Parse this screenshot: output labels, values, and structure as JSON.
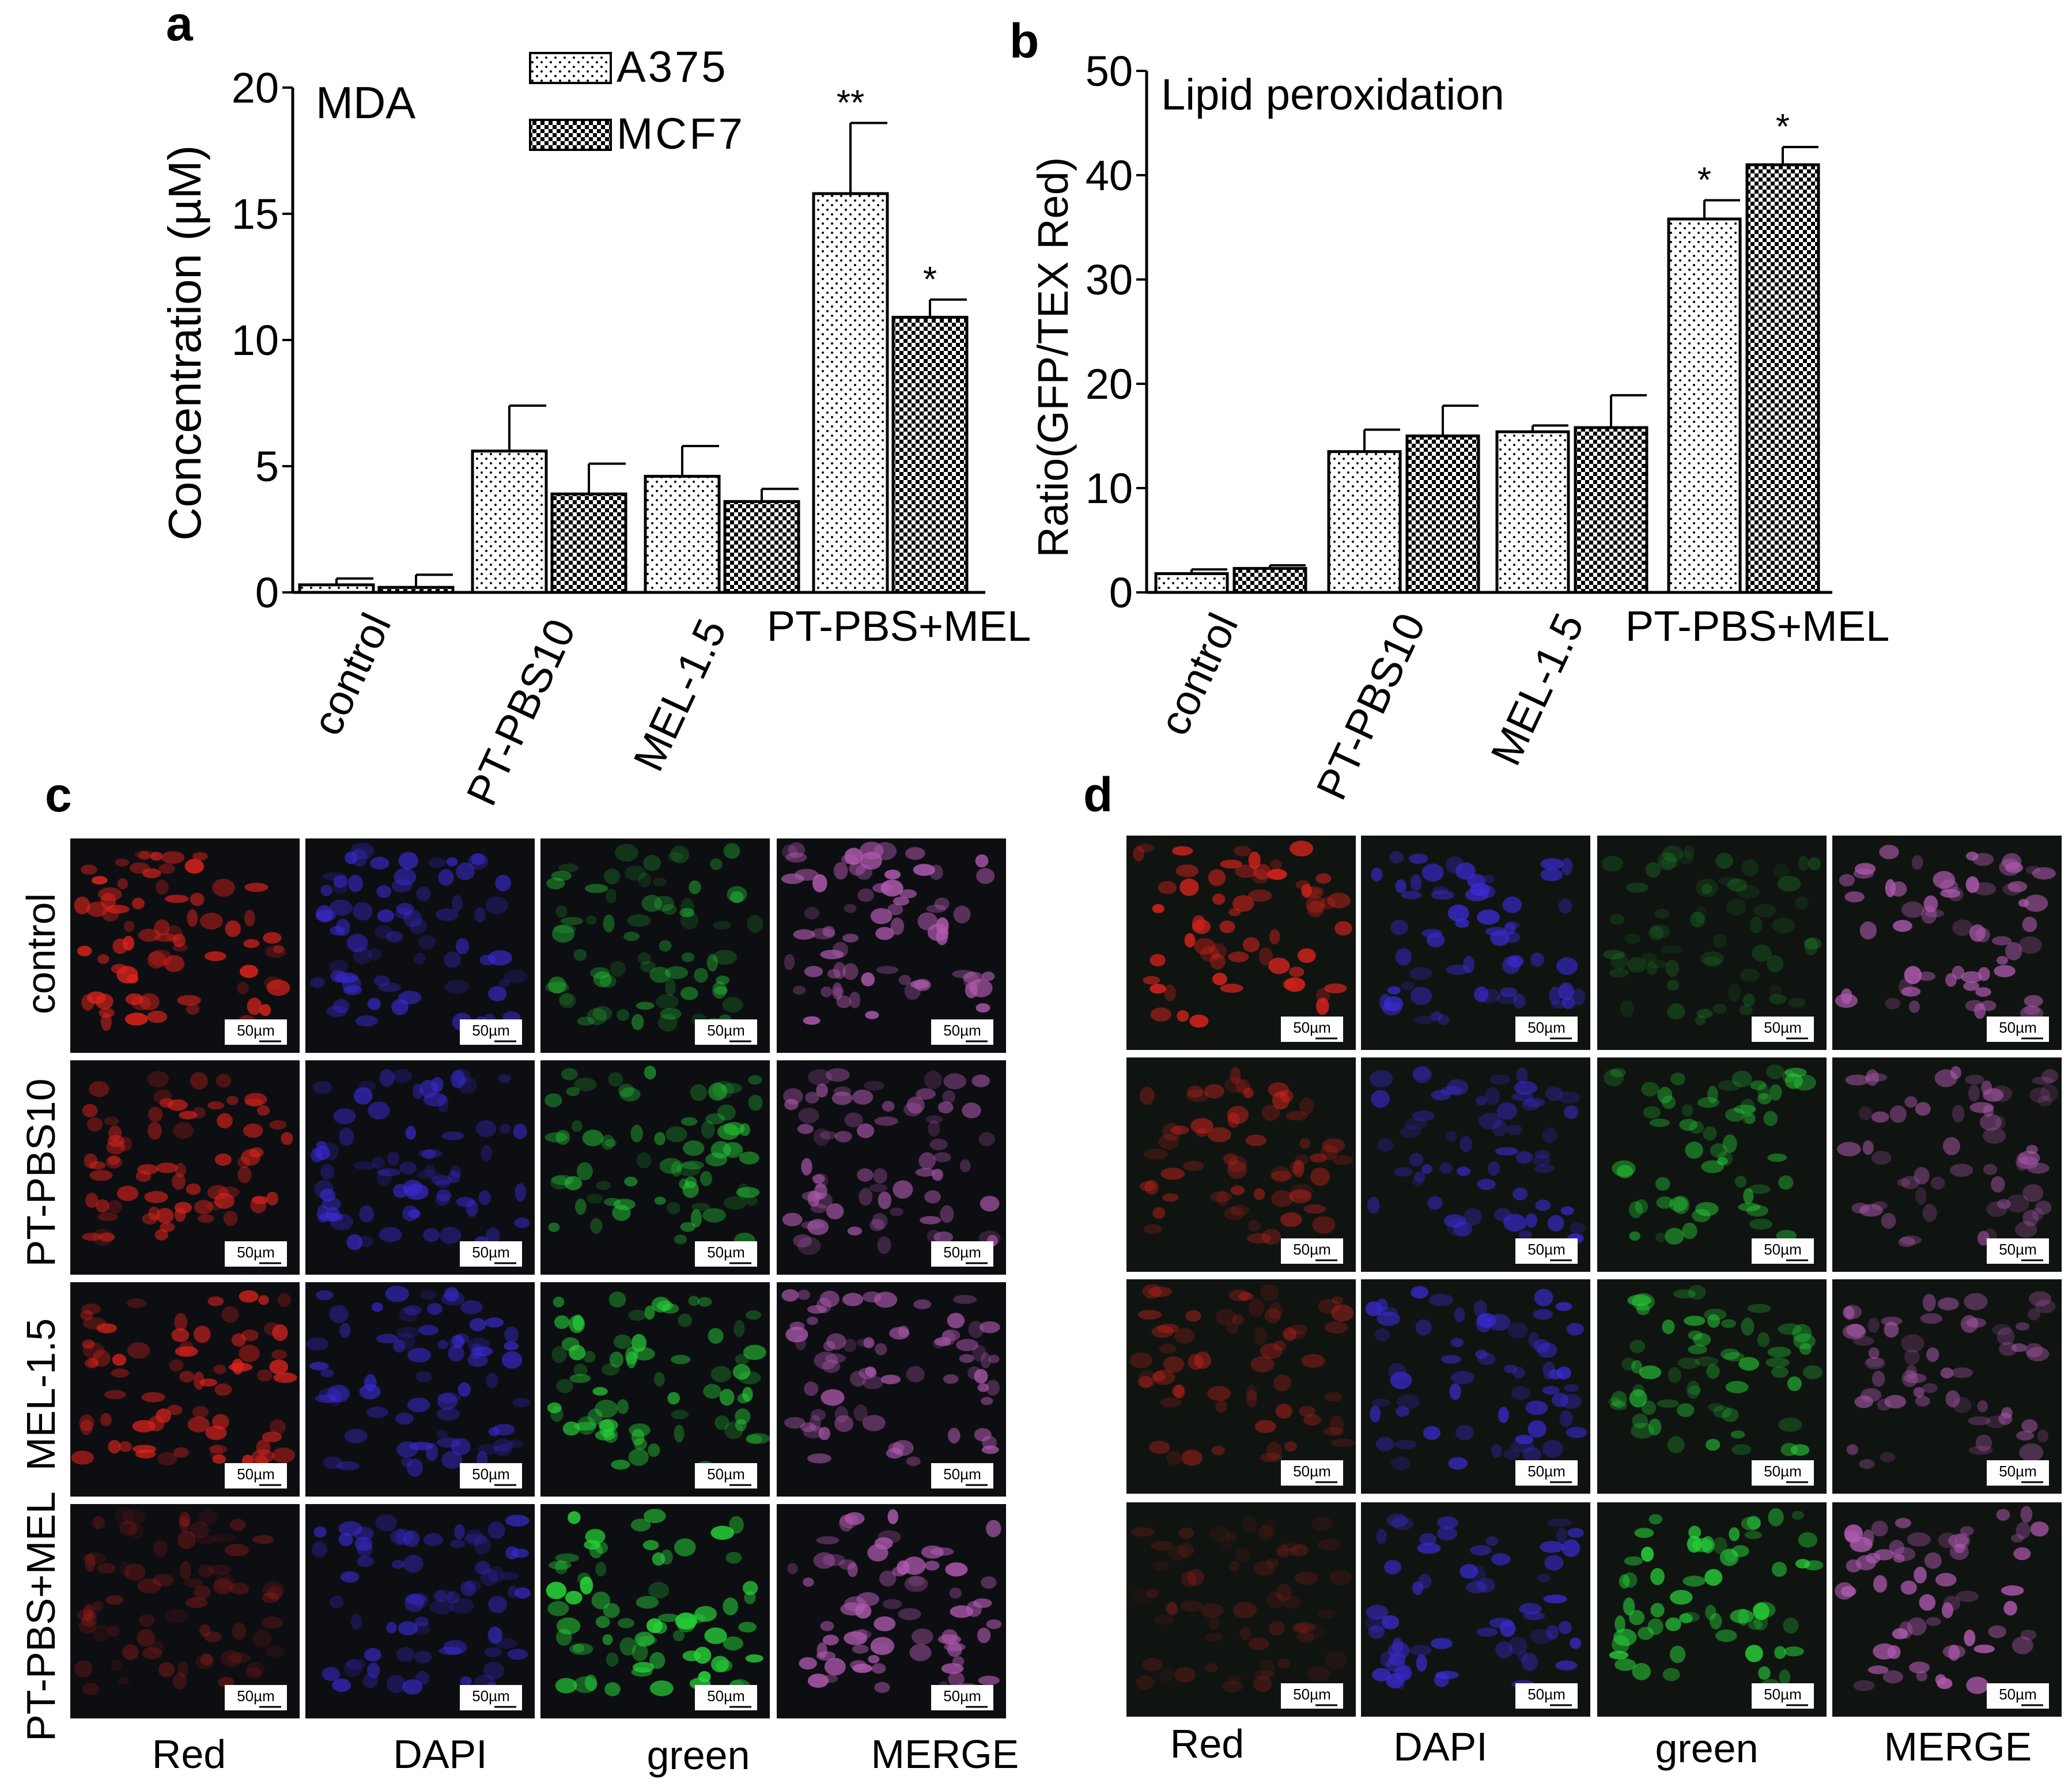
{
  "panel_letters": [
    "a",
    "b",
    "c",
    "d"
  ],
  "chart_data": [
    {
      "type": "bar",
      "panel": "a",
      "title": "MDA",
      "xlabel": "",
      "ylabel": "Concentration (µM)",
      "ylim": [
        0,
        20
      ],
      "yticks": [
        "0",
        "5",
        "10",
        "15",
        "20"
      ],
      "categories": [
        "control",
        "PT-PBS10",
        "MEL-1.5",
        "PT-PBS+MEL"
      ],
      "series": [
        {
          "name": "A375",
          "values": [
            0.3,
            5.6,
            4.6,
            15.8
          ],
          "errors": [
            0.25,
            1.8,
            1.2,
            2.8
          ],
          "significance": [
            "",
            "",
            "",
            "**"
          ]
        },
        {
          "name": "MCF7",
          "values": [
            0.2,
            3.9,
            3.6,
            10.9
          ],
          "errors": [
            0.5,
            1.2,
            0.5,
            0.7
          ],
          "significance": [
            "",
            "",
            "",
            "*"
          ]
        }
      ],
      "legend": "top-center",
      "grid": false
    },
    {
      "type": "bar",
      "panel": "b",
      "title": "Lipid peroxidation",
      "xlabel": "",
      "ylabel": "Ratio(GFP/TEX Red)",
      "ylim": [
        0,
        50
      ],
      "yticks": [
        "0",
        "10",
        "20",
        "30",
        "40",
        "50"
      ],
      "categories": [
        "control",
        "PT-PBS10",
        "MEL-1.5",
        "PT-PBS+MEL"
      ],
      "series": [
        {
          "name": "A375",
          "values": [
            1.8,
            13.5,
            15.4,
            35.8
          ],
          "errors": [
            0.4,
            2.1,
            0.6,
            1.8
          ],
          "significance": [
            "",
            "",
            "",
            "*"
          ]
        },
        {
          "name": "MCF7",
          "values": [
            2.3,
            15.0,
            15.8,
            41.0
          ],
          "errors": [
            0.3,
            2.9,
            3.1,
            1.7
          ],
          "significance": [
            "",
            "",
            "",
            "*"
          ]
        }
      ],
      "legend": "none",
      "grid": false
    }
  ],
  "panel_c": {
    "rows": [
      "control",
      "PT-PBS10",
      "MEL-1.5",
      "PT-PBS+MEL"
    ],
    "columns": [
      "Red",
      "DAPI",
      "green",
      "MERGE"
    ],
    "scale_bar": "50µm",
    "background_color": "#0d0e12"
  },
  "panel_d": {
    "columns": [
      "Red",
      "DAPI",
      "green",
      "MERGE"
    ],
    "scale_bar": "50µm",
    "background_color": "#101411"
  },
  "channel_colors": {
    "red": "#e0231c",
    "dapi": "#3a2bd6",
    "green": "#28d83a",
    "merge": "#b05ab0"
  }
}
